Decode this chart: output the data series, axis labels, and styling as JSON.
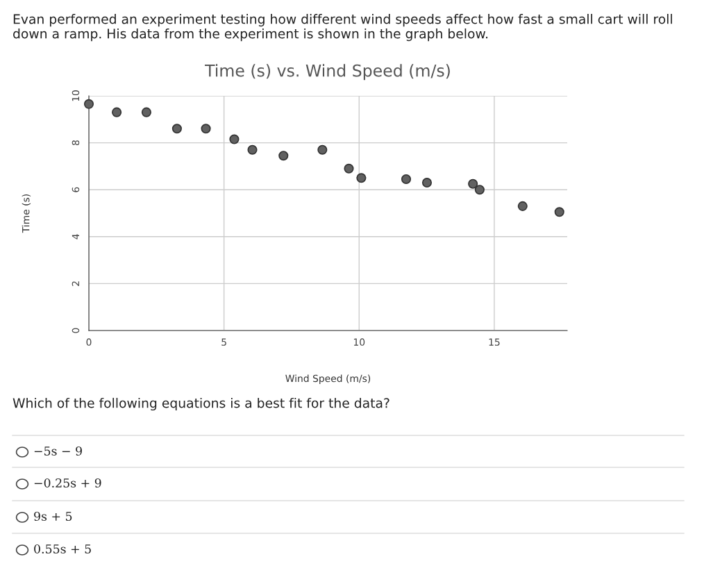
{
  "chart_data": {
    "type": "scatter",
    "title": "Time (s) vs. Wind Speed (m/s)",
    "xlabel": "Wind Speed (m/s)",
    "ylabel": "Time (s)",
    "x": [
      0,
      1.03,
      2.13,
      3.26,
      4.33,
      5.38,
      6.05,
      7.2,
      8.64,
      9.62,
      10.08,
      11.74,
      12.51,
      14.21,
      14.46,
      16.05,
      17.41
    ],
    "series": [
      {
        "color": "#616161",
        "values": [
          9.65,
          9.3,
          9.3,
          8.6,
          8.6,
          8.15,
          7.7,
          7.45,
          7.7,
          6.9,
          6.5,
          6.45,
          6.3,
          6.25,
          6.0,
          5.3,
          5.05
        ]
      }
    ],
    "xlim": [
      0,
      17.7
    ],
    "ylim": [
      0,
      10
    ],
    "xticks": [
      0,
      5,
      10,
      15
    ],
    "yticks": [
      0,
      2,
      4,
      6,
      8,
      10
    ],
    "grid": true,
    "marker": "circle",
    "annotations": [
      "Evan performed an experiment testing how different wind speeds affect how fast a small cart will roll down a ramp. His data from the experiment is shown in the graph below.",
      "Which of the following equations is a best fit for the data?",
      "−5s − 9",
      "−0.25s + 9",
      "9s + 5",
      "0.55s + 5"
    ]
  }
}
